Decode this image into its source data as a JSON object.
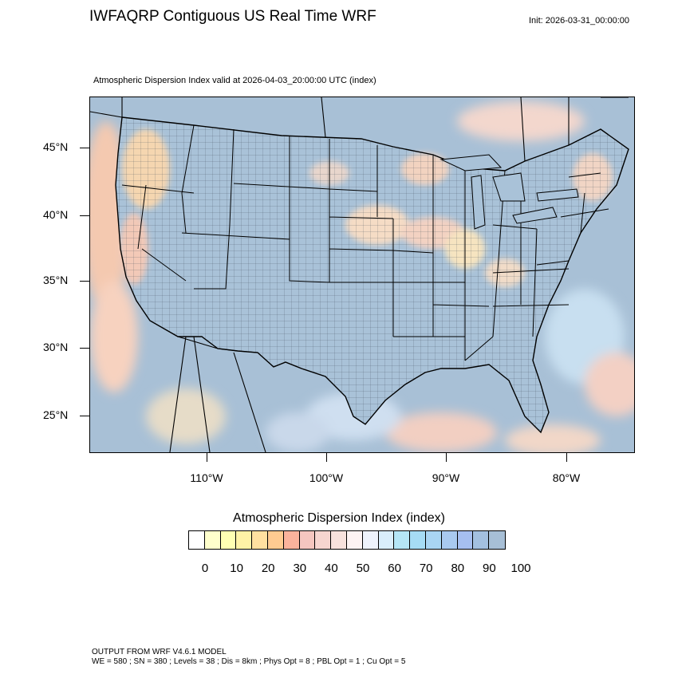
{
  "title": "IWFAQRP Contiguous US Real Time WRF",
  "init": "Init: 2026-03-31_00:00:00",
  "subtitle": "Atmospheric Dispersion Index valid at 2026-04-03_20:00:00 UTC   (index)",
  "lat_labels": [
    "45°N",
    "40°N",
    "35°N",
    "30°N",
    "25°N"
  ],
  "lon_labels": [
    "110°W",
    "100°W",
    "90°W",
    "80°W"
  ],
  "colorbar": {
    "title": "Atmospheric Dispersion Index  (index)",
    "labels": [
      "0",
      "10",
      "20",
      "30",
      "40",
      "50",
      "60",
      "70",
      "80",
      "90",
      "100"
    ],
    "colors": [
      "#ffffff",
      "#ffffcc",
      "#ffffb3",
      "#fff2a6",
      "#ffe0a0",
      "#ffcb91",
      "#fbb39c",
      "#f5c6c0",
      "#f6d5d0",
      "#f8e2dd",
      "#fdf3f3",
      "#eef2fb",
      "#daeefb",
      "#b5e6f6",
      "#a6dcf5",
      "#a9d5f3",
      "#a9c9ef",
      "#a6bff0",
      "#a3c0e0",
      "#a7bfd6"
    ]
  },
  "footer": {
    "line1": "OUTPUT FROM WRF V4.6.1 MODEL",
    "line2": "WE = 580 ; SN = 380 ; Levels = 38 ; Dis = 8km ; Phys Opt = 8 ; PBL Opt = 1 ; Cu Opt = 5"
  }
}
